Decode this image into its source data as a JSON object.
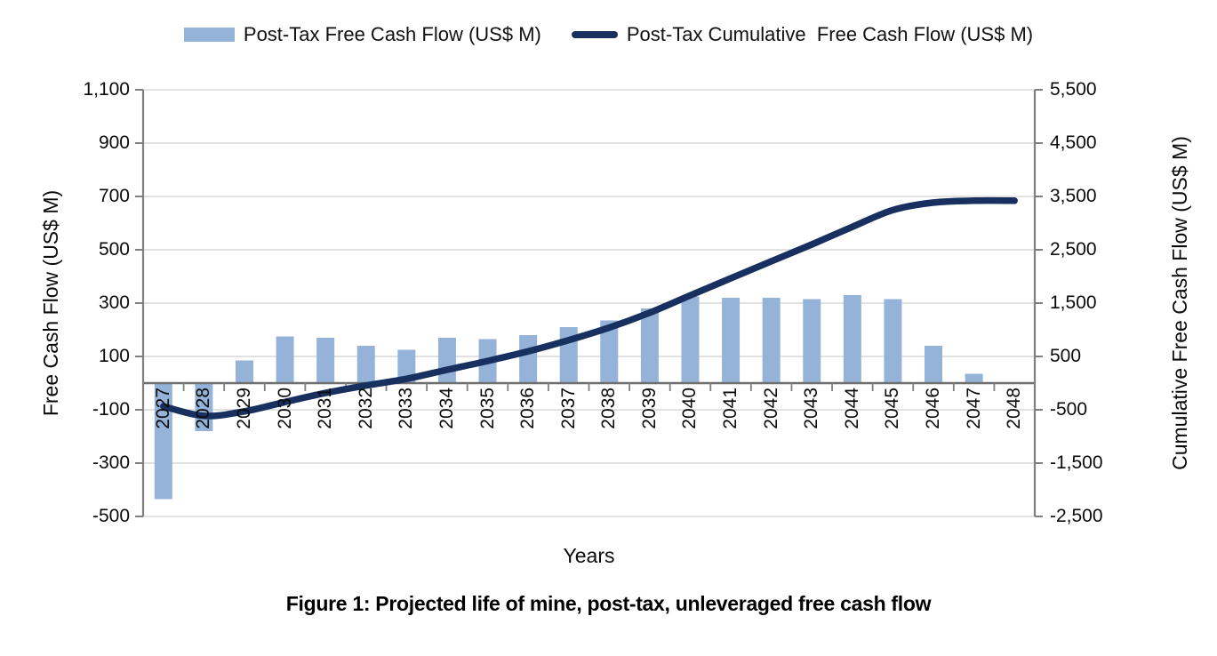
{
  "legend": {
    "items": [
      {
        "label": "Post-Tax Free Cash Flow (US$ M)",
        "swatch": "bar",
        "color": "#95B3D8"
      },
      {
        "label": "Post-Tax Cumulative  Free Cash Flow (US$ M)",
        "swatch": "line",
        "color": "#17305F"
      }
    ]
  },
  "chart_data": {
    "type": "combo",
    "categories": [
      "2027",
      "2028",
      "2029",
      "2030",
      "2031",
      "2032",
      "2033",
      "2034",
      "2035",
      "2036",
      "2037",
      "2038",
      "2039",
      "2040",
      "2041",
      "2042",
      "2043",
      "2044",
      "2045",
      "2046",
      "2047",
      "2048"
    ],
    "series": [
      {
        "name": "Post-Tax Free Cash Flow (US$ M)",
        "type": "bar",
        "axis": "left",
        "color": "#95B3D8",
        "values": [
          -435,
          -180,
          85,
          175,
          170,
          140,
          125,
          170,
          165,
          180,
          210,
          235,
          280,
          325,
          320,
          320,
          315,
          330,
          315,
          140,
          35,
          0
        ]
      },
      {
        "name": "Post-Tax Cumulative Free Cash Flow (US$ M)",
        "type": "line",
        "axis": "right",
        "color": "#17305F",
        "values": [
          -435,
          -615,
          -530,
          -355,
          -185,
          -45,
          80,
          250,
          415,
          595,
          805,
          1040,
          1320,
          1645,
          1965,
          2285,
          2600,
          2930,
          3245,
          3385,
          3420,
          3420
        ]
      }
    ],
    "left_axis": {
      "title": "Free Cash Flow (US$ M)",
      "min": -500,
      "max": 1100,
      "tick_values": [
        -500,
        -300,
        -100,
        100,
        300,
        500,
        700,
        900,
        1100
      ],
      "tick_labels": [
        "-500",
        "-300",
        "-100",
        "100",
        "300",
        "500",
        "700",
        "900",
        "1,100"
      ]
    },
    "right_axis": {
      "title": "Cumulative Free Cash Flow (US$ M)",
      "min": -2500,
      "max": 5500,
      "tick_values": [
        -2500,
        -1500,
        -500,
        500,
        1500,
        2500,
        3500,
        4500,
        5500
      ],
      "tick_labels": [
        "-2,500",
        "-1,500",
        "-500",
        "500",
        "1,500",
        "2,500",
        "3,500",
        "4,500",
        "5,500"
      ]
    },
    "xlabel": "Years",
    "grid": true,
    "legend_position": "top"
  },
  "caption": "Figure 1: Projected life of mine, post-tax, unleveraged free cash flow",
  "colors": {
    "bar": "#95B3D8",
    "line": "#17305F",
    "gridline": "#D9D9D9",
    "axis": "#7F7F7F",
    "zero_line": "#6E6E6E",
    "text": "#000000"
  }
}
